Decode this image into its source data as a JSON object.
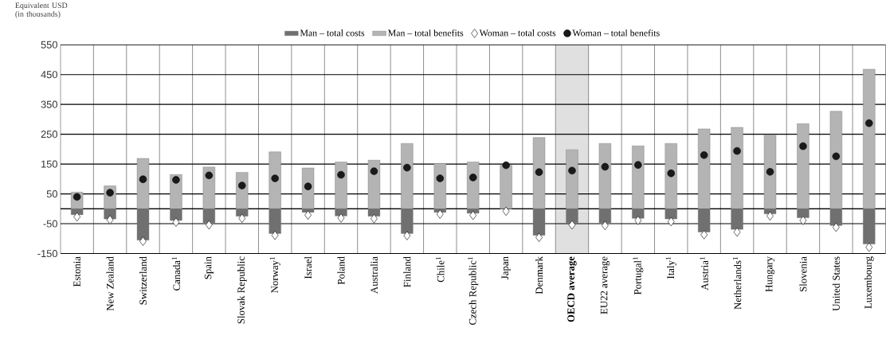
{
  "chart_data": {
    "type": "bar",
    "ylabel": "Equivalent USD (in thousands)",
    "categories": [
      "Estonia",
      "New Zealand",
      "Switzerland",
      "Canada$^{1}$",
      "Spain",
      "Slovak Republic",
      "Norway$^{1}$",
      "Israel",
      "Poland",
      "Australia",
      "Finland",
      "Chile$^{1}$",
      "Czech Republic$^{1}$",
      "Japan",
      "Denmark",
      "**OECD average**",
      "EU22 average",
      "Portugal$^{1}$",
      "Italy$^{1}$",
      "Austria$^{1}$",
      "Netherlands$^{1}$",
      "Hungary",
      "Slovenia",
      "United States",
      "Luxembourg"
    ],
    "series": [
      {
        "name": "Man – total costs",
        "color": "#707070",
        "values": [
          -20,
          -34,
          -105,
          -39,
          -47,
          -25,
          -83,
          -12,
          -24,
          -25,
          -83,
          -12,
          -15,
          null,
          -89,
          -47,
          -47,
          -32,
          -34,
          -78,
          -69,
          -17,
          -30,
          -56,
          -118
        ]
      },
      {
        "name": "Man – total benefits",
        "color": "#b4b4b4",
        "values": [
          56,
          77,
          169,
          115,
          140,
          122,
          191,
          137,
          157,
          163,
          219,
          152,
          157,
          146,
          239,
          198,
          219,
          211,
          219,
          268,
          273,
          248,
          285,
          327,
          468
        ]
      },
      {
        "name": "Woman – total costs",
        "type": "scatter",
        "marker": "diamond",
        "color": "#ffffff",
        "values": [
          -27,
          -37,
          -109,
          -45,
          -54,
          -32,
          -89,
          -21,
          -31,
          -33,
          -90,
          -18,
          -22,
          -8,
          -96,
          -54,
          -56,
          -39,
          -43,
          -87,
          -78,
          -24,
          -39,
          -62,
          -129
        ]
      },
      {
        "name": "Woman – total benefits",
        "type": "scatter",
        "marker": "circle",
        "color": "#1a1a1a",
        "values": [
          40,
          54,
          99,
          97,
          112,
          78,
          102,
          75,
          114,
          126,
          138,
          102,
          105,
          146,
          123,
          128,
          141,
          147,
          119,
          180,
          194,
          124,
          210,
          176,
          287
        ]
      }
    ],
    "ylim": [
      -150,
      550
    ],
    "yticks": [
      -150,
      -50,
      50,
      150,
      250,
      350,
      450,
      550
    ],
    "grid": true,
    "legend": "top",
    "stacked": true,
    "ref_lines": [
      {
        "axis": "y",
        "value": 0,
        "color": "#000000"
      }
    ],
    "bands": [
      {
        "axis": "x",
        "from": "**OECD average**",
        "to": "**OECD average**",
        "color": "#e0e0e0"
      }
    ]
  }
}
